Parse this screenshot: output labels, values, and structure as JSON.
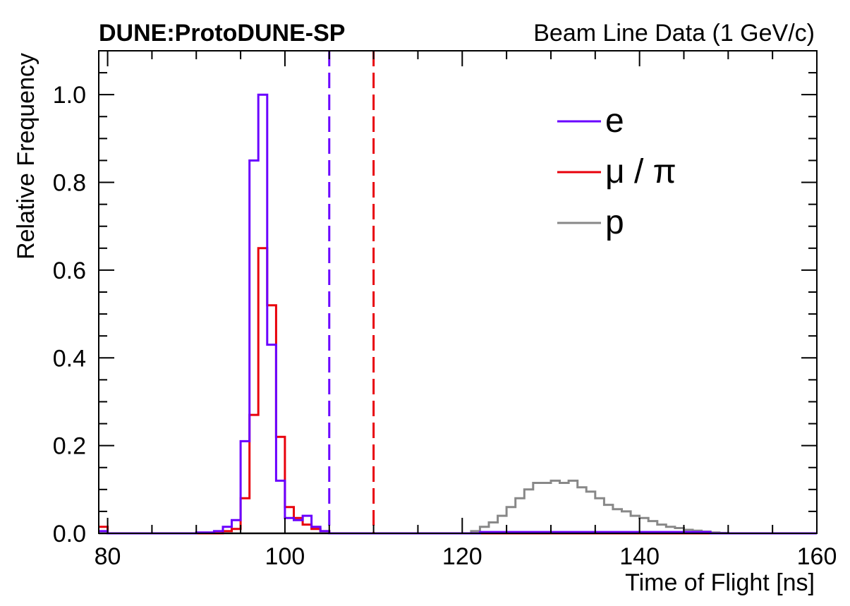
{
  "header": {
    "experiment": "DUNE:ProtoDUNE-SP",
    "dataset": "Beam Line Data (1 GeV/c)"
  },
  "chart_data": {
    "type": "histogram",
    "xlabel": "Time of Flight [ns]",
    "ylabel": "Relative Frequency",
    "xlim": [
      79,
      160
    ],
    "ylim": [
      0,
      1.1
    ],
    "xticks": [
      80,
      100,
      120,
      140,
      160
    ],
    "xtick_labels": [
      "80",
      "100",
      "120",
      "140",
      "160"
    ],
    "yticks": [
      0,
      0.2,
      0.4,
      0.6,
      0.8,
      1.0
    ],
    "ytick_labels": [
      "0.0",
      "0.2",
      "0.4",
      "0.6",
      "0.8",
      "1.0"
    ],
    "bin_width": 1,
    "grid": false,
    "legend_position": "top-right",
    "series": [
      {
        "name": "e",
        "color": "#6a00ff",
        "bins": [
          [
            79,
            0.005
          ],
          [
            80,
            0.0
          ],
          [
            90,
            0.002
          ],
          [
            92,
            0.005
          ],
          [
            93,
            0.015
          ],
          [
            94,
            0.03
          ],
          [
            95,
            0.21
          ],
          [
            96,
            0.85
          ],
          [
            97,
            1.0
          ],
          [
            98,
            0.43
          ],
          [
            99,
            0.12
          ],
          [
            100,
            0.035
          ],
          [
            101,
            0.03
          ],
          [
            102,
            0.04
          ],
          [
            103,
            0.015
          ],
          [
            104,
            0.005
          ],
          [
            105,
            0.0
          ],
          [
            122,
            0.003
          ],
          [
            148,
            0.0
          ]
        ]
      },
      {
        "name": "μ / π",
        "color": "#e8000b",
        "bins": [
          [
            79,
            0.015
          ],
          [
            80,
            0.0
          ],
          [
            93,
            0.005
          ],
          [
            94,
            0.01
          ],
          [
            95,
            0.08
          ],
          [
            96,
            0.27
          ],
          [
            97,
            0.65
          ],
          [
            98,
            0.52
          ],
          [
            99,
            0.22
          ],
          [
            100,
            0.06
          ],
          [
            101,
            0.035
          ],
          [
            102,
            0.02
          ],
          [
            103,
            0.01
          ],
          [
            104,
            0.005
          ],
          [
            105,
            0.0
          ]
        ]
      },
      {
        "name": "p",
        "color": "#888888",
        "bins": [
          [
            79,
            0.0
          ],
          [
            121,
            0.005
          ],
          [
            122,
            0.015
          ],
          [
            123,
            0.025
          ],
          [
            124,
            0.04
          ],
          [
            125,
            0.06
          ],
          [
            126,
            0.08
          ],
          [
            127,
            0.1
          ],
          [
            128,
            0.115
          ],
          [
            129,
            0.115
          ],
          [
            130,
            0.12
          ],
          [
            131,
            0.115
          ],
          [
            132,
            0.12
          ],
          [
            133,
            0.105
          ],
          [
            134,
            0.095
          ],
          [
            135,
            0.08
          ],
          [
            136,
            0.065
          ],
          [
            137,
            0.055
          ],
          [
            138,
            0.05
          ],
          [
            139,
            0.04
          ],
          [
            140,
            0.035
          ],
          [
            141,
            0.028
          ],
          [
            142,
            0.02
          ],
          [
            143,
            0.015
          ],
          [
            144,
            0.012
          ],
          [
            145,
            0.008
          ],
          [
            146,
            0.006
          ],
          [
            147,
            0.004
          ],
          [
            148,
            0.002
          ],
          [
            149,
            0.001
          ],
          [
            150,
            0.0
          ]
        ]
      }
    ],
    "cut_lines": [
      {
        "x": 105,
        "color": "#6a00ff",
        "style": "dashed"
      },
      {
        "x": 110,
        "color": "#e8000b",
        "style": "dashed"
      }
    ]
  }
}
